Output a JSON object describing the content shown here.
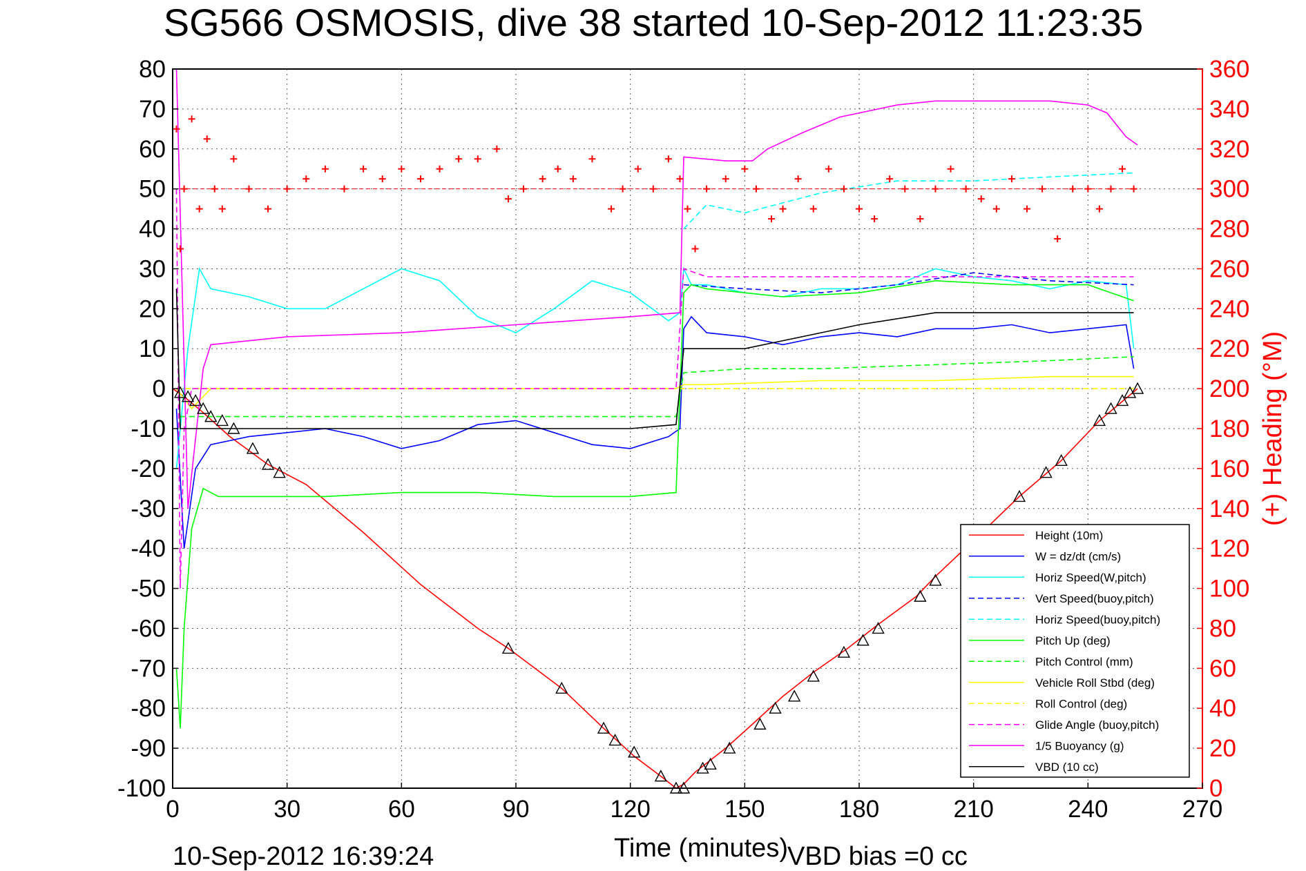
{
  "title": "SG566 OSMOSIS, dive 38 started 10-Sep-2012 11:23:35",
  "xlabel": "Time (minutes)",
  "ylabel_right": "(+) Heading (°M)",
  "footer_left": "10-Sep-2012 16:39:24",
  "footer_right": "VBD bias =0 cc",
  "colors": {
    "height": "#ff0000",
    "w": "#0000ff",
    "hspeed": "#00ffff",
    "vspeed_buoy": "#0000ff",
    "hspeed_buoy": "#00ffff",
    "pitch": "#00ff00",
    "pitch_ctrl": "#00ff00",
    "roll": "#ffff00",
    "roll_ctrl": "#ffff00",
    "glide": "#ff00ff",
    "buoyancy": "#ff00ff",
    "vbd": "#000000",
    "heading": "#ff0000"
  },
  "chart_data": {
    "type": "line",
    "title": "SG566 OSMOSIS, dive 38 started 10-Sep-2012 11:23:35",
    "xlabel": "Time (minutes)",
    "ylabel_right": "(+) Heading (°M)",
    "xlim": [
      0,
      270
    ],
    "ylim_left": [
      -100,
      80
    ],
    "ylim_right": [
      0,
      360
    ],
    "xticks": [
      "0",
      "30",
      "60",
      "90",
      "120",
      "150",
      "180",
      "210",
      "240",
      "270"
    ],
    "yticks_left": [
      "80",
      "70",
      "60",
      "50",
      "40",
      "30",
      "20",
      "10",
      "0",
      "-10",
      "-20",
      "-30",
      "-40",
      "-50",
      "-60",
      "-70",
      "-80",
      "-90",
      "-100"
    ],
    "yticks_right": [
      "360",
      "340",
      "320",
      "300",
      "280",
      "260",
      "240",
      "220",
      "200",
      "180",
      "160",
      "140",
      "120",
      "100",
      "80",
      "60",
      "40",
      "20",
      "0"
    ],
    "grid": true,
    "legend_position": "lower-right",
    "series": [
      {
        "name": "Height (10m)",
        "style": "solid",
        "color": "#ff0000",
        "x": [
          0,
          3,
          8,
          15,
          25,
          35,
          50,
          65,
          80,
          88,
          102,
          113,
          121,
          128,
          132,
          134,
          137,
          141,
          145,
          152,
          160,
          168,
          177,
          185,
          195,
          200,
          210,
          222,
          233,
          243,
          248,
          253
        ],
        "y": [
          0,
          -2,
          -6,
          -12,
          -19,
          -24,
          -36,
          -49,
          -60,
          -65,
          -75,
          -85,
          -92,
          -97,
          -100,
          -99,
          -96,
          -93,
          -90,
          -84,
          -77,
          -71,
          -65,
          -59,
          -52,
          -47,
          -38,
          -27,
          -18,
          -8,
          -4,
          0
        ]
      },
      {
        "name": "W = dz/dt (cm/s)",
        "style": "solid",
        "color": "#0000ff",
        "x": [
          1,
          3,
          6,
          10,
          20,
          30,
          40,
          50,
          60,
          70,
          80,
          90,
          100,
          110,
          120,
          130,
          133,
          134,
          136,
          140,
          150,
          160,
          170,
          180,
          190,
          200,
          210,
          220,
          230,
          240,
          250,
          252
        ],
        "y": [
          -5,
          -40,
          -20,
          -14,
          -12,
          -11,
          -10,
          -12,
          -15,
          -13,
          -9,
          -8,
          -11,
          -14,
          -15,
          -12,
          -10,
          15,
          18,
          14,
          13,
          11,
          13,
          14,
          13,
          15,
          15,
          16,
          14,
          15,
          16,
          5
        ]
      },
      {
        "name": "Horiz Speed(W,pitch)",
        "style": "solid",
        "color": "#00ffff",
        "x": [
          1,
          4,
          7,
          10,
          20,
          30,
          40,
          50,
          60,
          70,
          80,
          90,
          100,
          110,
          120,
          130,
          133,
          134,
          136,
          140,
          150,
          160,
          170,
          180,
          190,
          200,
          210,
          220,
          230,
          240,
          250,
          252
        ],
        "y": [
          -20,
          10,
          30,
          25,
          23,
          20,
          20,
          25,
          30,
          27,
          18,
          14,
          20,
          27,
          24,
          17,
          19,
          30,
          26,
          26,
          24,
          23,
          25,
          25,
          26,
          30,
          28,
          27,
          25,
          27,
          26,
          10
        ]
      },
      {
        "name": "Vert Speed(buoy,pitch)",
        "style": "dashed",
        "color": "#0000ff",
        "x": [
          134,
          150,
          170,
          190,
          210,
          230,
          252
        ],
        "y": [
          26,
          25,
          24,
          26,
          29,
          27,
          26
        ]
      },
      {
        "name": "Horiz Speed(buoy,pitch)",
        "style": "dashed",
        "color": "#00ffff",
        "x": [
          134,
          140,
          150,
          170,
          190,
          210,
          230,
          252
        ],
        "y": [
          40,
          46,
          44,
          49,
          52,
          52,
          53,
          54
        ]
      },
      {
        "name": "Pitch Up (deg)",
        "style": "solid",
        "color": "#00ff00",
        "x": [
          1,
          2,
          3,
          5,
          8,
          12,
          20,
          40,
          60,
          80,
          100,
          120,
          132,
          134,
          136,
          140,
          160,
          180,
          200,
          220,
          240,
          252
        ],
        "y": [
          -70,
          -85,
          -60,
          -35,
          -25,
          -27,
          -27,
          -27,
          -26,
          -26,
          -27,
          -27,
          -26,
          24,
          26,
          25,
          23,
          24,
          27,
          26,
          26,
          22
        ]
      },
      {
        "name": "Pitch Control (mm)",
        "style": "dashed",
        "color": "#00ff00",
        "x": [
          2,
          10,
          40,
          80,
          120,
          132,
          134,
          150,
          170,
          200,
          230,
          252
        ],
        "y": [
          -7,
          -7,
          -7,
          -7,
          -7,
          -7,
          4,
          5,
          5,
          6,
          7,
          8
        ]
      },
      {
        "name": "Vehicle Roll Stbd (deg)",
        "style": "solid",
        "color": "#ffff00",
        "x": [
          1,
          5,
          10,
          40,
          80,
          120,
          132,
          134,
          140,
          170,
          200,
          230,
          252
        ],
        "y": [
          0,
          -5,
          0,
          0,
          0,
          0,
          0,
          1,
          1,
          2,
          2,
          3,
          3
        ]
      },
      {
        "name": "Roll Control (deg)",
        "style": "dashed",
        "color": "#ffff00",
        "x": [
          1,
          10,
          60,
          120,
          132,
          134,
          200,
          252
        ],
        "y": [
          0,
          0,
          0,
          0,
          0,
          0,
          0,
          0
        ]
      },
      {
        "name": "Glide Angle (buoy,pitch)",
        "style": "dashed",
        "color": "#ff00ff",
        "x": [
          1,
          2,
          3,
          5,
          10,
          60,
          120,
          132,
          134,
          140,
          180,
          220,
          252
        ],
        "y": [
          50,
          -50,
          -10,
          0,
          0,
          0,
          0,
          0,
          30,
          28,
          28,
          28,
          28
        ]
      },
      {
        "name": "1/5 Buoyancy (g)",
        "style": "solid",
        "color": "#ff00ff",
        "x": [
          1,
          4,
          8,
          10,
          30,
          60,
          90,
          120,
          133,
          134,
          145,
          152,
          156,
          165,
          175,
          190,
          200,
          230,
          240,
          245,
          250,
          253
        ],
        "y": [
          80,
          -30,
          5,
          11,
          13,
          14,
          16,
          18,
          19,
          58,
          57,
          57,
          60,
          64,
          68,
          71,
          72,
          72,
          71,
          69,
          63,
          61
        ]
      },
      {
        "name": "VBD (10 cc)",
        "style": "solid",
        "color": "#000000",
        "x": [
          1,
          2,
          10,
          60,
          120,
          132,
          134,
          150,
          160,
          170,
          180,
          200,
          252
        ],
        "y": [
          25,
          -10,
          -10,
          -10,
          -10,
          -9,
          10,
          10,
          12,
          14,
          16,
          19,
          19
        ]
      }
    ],
    "heading": {
      "name": "(+) Heading",
      "color": "#ff0000",
      "marker": "+",
      "axis": "right",
      "x": [
        1,
        2,
        3,
        5,
        7,
        9,
        11,
        13,
        16,
        20,
        25,
        30,
        35,
        40,
        45,
        50,
        55,
        60,
        65,
        70,
        75,
        80,
        85,
        88,
        92,
        97,
        101,
        105,
        110,
        115,
        118,
        122,
        126,
        130,
        133,
        135,
        137,
        140,
        145,
        150,
        153,
        157,
        160,
        164,
        168,
        172,
        176,
        180,
        184,
        188,
        192,
        196,
        200,
        204,
        208,
        212,
        216,
        220,
        224,
        228,
        232,
        236,
        240,
        243,
        246,
        249,
        252
      ],
      "y": [
        330,
        270,
        300,
        335,
        290,
        325,
        300,
        290,
        315,
        300,
        290,
        300,
        305,
        310,
        300,
        310,
        305,
        310,
        305,
        310,
        315,
        315,
        320,
        295,
        300,
        305,
        310,
        305,
        315,
        290,
        300,
        310,
        300,
        315,
        305,
        290,
        270,
        300,
        305,
        310,
        300,
        285,
        290,
        305,
        290,
        310,
        300,
        290,
        285,
        305,
        300,
        285,
        300,
        310,
        300,
        295,
        290,
        305,
        290,
        300,
        275,
        300,
        300,
        290,
        300,
        310,
        300
      ]
    },
    "markers": {
      "symbol": "triangle",
      "x": [
        2,
        4,
        6,
        8,
        10,
        13,
        16,
        21,
        25,
        28,
        88,
        102,
        113,
        116,
        121,
        128,
        132,
        134,
        139,
        141,
        146,
        154,
        158,
        163,
        168,
        176,
        181,
        185,
        196,
        200,
        222,
        229,
        233,
        243,
        246,
        249,
        251,
        253
      ],
      "y": [
        -1,
        -2,
        -3,
        -5,
        -7,
        -8,
        -10,
        -15,
        -19,
        -21,
        -65,
        -75,
        -85,
        -88,
        -91,
        -97,
        -100,
        -100,
        -95,
        -94,
        -90,
        -84,
        -80,
        -77,
        -72,
        -66,
        -63,
        -60,
        -52,
        -48,
        -27,
        -21,
        -18,
        -8,
        -5,
        -3,
        -1,
        0
      ]
    },
    "legend": [
      "Height (10m)",
      "W = dz/dt (cm/s)",
      "Horiz Speed(W,pitch)",
      "Vert Speed(buoy,pitch)",
      "Horiz Speed(buoy,pitch)",
      "Pitch Up (deg)",
      "Pitch Control (mm)",
      "Vehicle Roll Stbd (deg)",
      "Roll Control (deg)",
      "Glide Angle (buoy,pitch)",
      "1/5 Buoyancy (g)",
      "VBD (10 cc)"
    ]
  }
}
